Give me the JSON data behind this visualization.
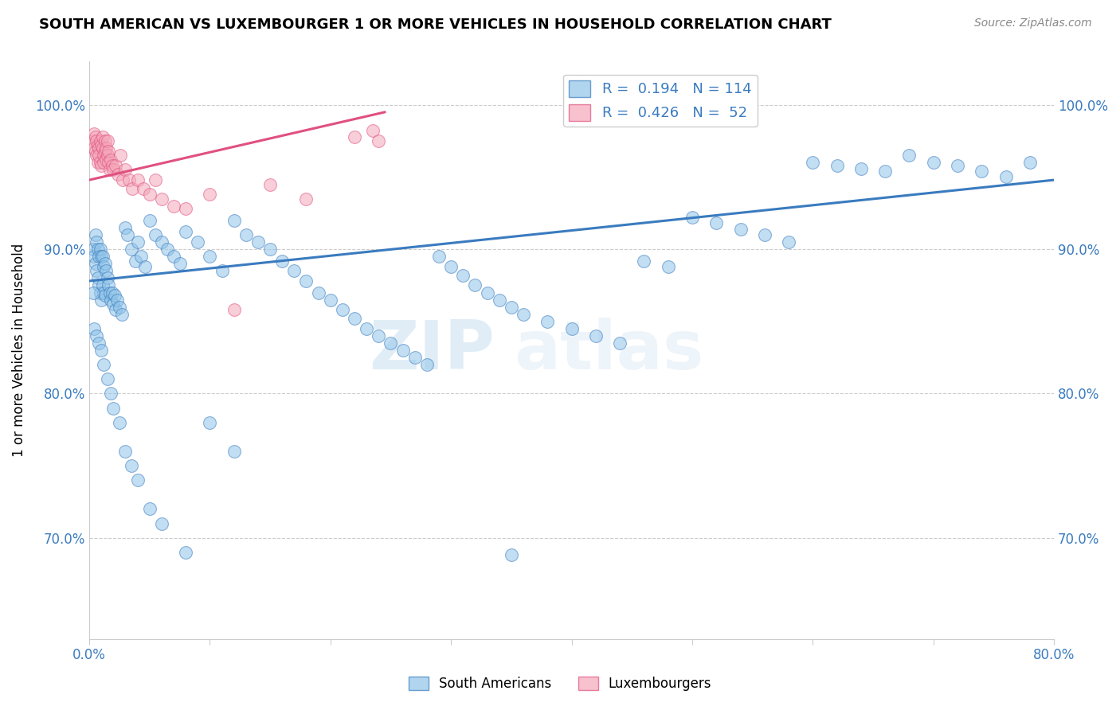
{
  "title": "SOUTH AMERICAN VS LUXEMBOURGER 1 OR MORE VEHICLES IN HOUSEHOLD CORRELATION CHART",
  "source": "Source: ZipAtlas.com",
  "ylabel": "1 or more Vehicles in Household",
  "legend_label1": "South Americans",
  "legend_label2": "Luxembourgers",
  "r1": 0.194,
  "n1": 114,
  "r2": 0.426,
  "n2": 52,
  "xlim": [
    0.0,
    0.8
  ],
  "ylim": [
    0.63,
    1.03
  ],
  "xticks": [
    0.0,
    0.1,
    0.2,
    0.3,
    0.4,
    0.5,
    0.6,
    0.7,
    0.8
  ],
  "xticklabels": [
    "0.0%",
    "",
    "",
    "",
    "",
    "",
    "",
    "",
    "80.0%"
  ],
  "yticks": [
    0.7,
    0.8,
    0.9,
    1.0
  ],
  "yticklabels": [
    "70.0%",
    "80.0%",
    "90.0%",
    "100.0%"
  ],
  "color_blue": "#90c4e8",
  "color_pink": "#f4a7b9",
  "line_color_blue": "#3a7bbf",
  "line_color_pink": "#e05080",
  "watermark_zip": "ZIP",
  "watermark_atlas": "atlas",
  "blue_scatter_x": [
    0.003,
    0.004,
    0.005,
    0.005,
    0.006,
    0.006,
    0.007,
    0.007,
    0.008,
    0.008,
    0.009,
    0.009,
    0.01,
    0.01,
    0.011,
    0.011,
    0.012,
    0.012,
    0.013,
    0.013,
    0.014,
    0.015,
    0.016,
    0.017,
    0.018,
    0.019,
    0.02,
    0.021,
    0.022,
    0.023,
    0.025,
    0.027,
    0.03,
    0.032,
    0.035,
    0.038,
    0.04,
    0.043,
    0.046,
    0.05,
    0.055,
    0.06,
    0.065,
    0.07,
    0.075,
    0.08,
    0.09,
    0.1,
    0.11,
    0.12,
    0.13,
    0.14,
    0.15,
    0.16,
    0.17,
    0.18,
    0.19,
    0.2,
    0.21,
    0.22,
    0.23,
    0.24,
    0.25,
    0.26,
    0.27,
    0.28,
    0.29,
    0.3,
    0.31,
    0.32,
    0.33,
    0.34,
    0.35,
    0.36,
    0.38,
    0.4,
    0.42,
    0.44,
    0.46,
    0.48,
    0.5,
    0.52,
    0.54,
    0.56,
    0.58,
    0.6,
    0.62,
    0.64,
    0.66,
    0.68,
    0.7,
    0.72,
    0.74,
    0.76,
    0.78,
    0.003,
    0.004,
    0.006,
    0.008,
    0.01,
    0.012,
    0.015,
    0.018,
    0.02,
    0.025,
    0.03,
    0.035,
    0.04,
    0.05,
    0.06,
    0.08,
    0.1,
    0.12,
    0.35
  ],
  "blue_scatter_y": [
    0.9,
    0.895,
    0.91,
    0.89,
    0.905,
    0.885,
    0.9,
    0.88,
    0.895,
    0.875,
    0.9,
    0.87,
    0.895,
    0.865,
    0.895,
    0.875,
    0.888,
    0.87,
    0.89,
    0.868,
    0.885,
    0.88,
    0.875,
    0.87,
    0.865,
    0.87,
    0.862,
    0.868,
    0.858,
    0.865,
    0.86,
    0.855,
    0.915,
    0.91,
    0.9,
    0.892,
    0.905,
    0.895,
    0.888,
    0.92,
    0.91,
    0.905,
    0.9,
    0.895,
    0.89,
    0.912,
    0.905,
    0.895,
    0.885,
    0.92,
    0.91,
    0.905,
    0.9,
    0.892,
    0.885,
    0.878,
    0.87,
    0.865,
    0.858,
    0.852,
    0.845,
    0.84,
    0.835,
    0.83,
    0.825,
    0.82,
    0.895,
    0.888,
    0.882,
    0.875,
    0.87,
    0.865,
    0.86,
    0.855,
    0.85,
    0.845,
    0.84,
    0.835,
    0.892,
    0.888,
    0.922,
    0.918,
    0.914,
    0.91,
    0.905,
    0.96,
    0.958,
    0.956,
    0.954,
    0.965,
    0.96,
    0.958,
    0.954,
    0.95,
    0.96,
    0.87,
    0.845,
    0.84,
    0.835,
    0.83,
    0.82,
    0.81,
    0.8,
    0.79,
    0.78,
    0.76,
    0.75,
    0.74,
    0.72,
    0.71,
    0.69,
    0.78,
    0.76,
    0.688
  ],
  "pink_scatter_x": [
    0.003,
    0.004,
    0.004,
    0.005,
    0.005,
    0.006,
    0.006,
    0.007,
    0.007,
    0.008,
    0.008,
    0.009,
    0.009,
    0.01,
    0.01,
    0.011,
    0.011,
    0.012,
    0.012,
    0.013,
    0.013,
    0.014,
    0.014,
    0.015,
    0.015,
    0.016,
    0.016,
    0.017,
    0.018,
    0.019,
    0.02,
    0.022,
    0.024,
    0.026,
    0.028,
    0.03,
    0.033,
    0.036,
    0.04,
    0.045,
    0.05,
    0.055,
    0.06,
    0.07,
    0.08,
    0.1,
    0.12,
    0.15,
    0.18,
    0.22,
    0.235,
    0.24
  ],
  "pink_scatter_y": [
    0.975,
    0.98,
    0.97,
    0.978,
    0.968,
    0.975,
    0.965,
    0.972,
    0.96,
    0.97,
    0.965,
    0.975,
    0.96,
    0.972,
    0.958,
    0.97,
    0.978,
    0.965,
    0.96,
    0.968,
    0.975,
    0.962,
    0.97,
    0.965,
    0.975,
    0.96,
    0.968,
    0.955,
    0.962,
    0.958,
    0.955,
    0.958,
    0.952,
    0.965,
    0.948,
    0.955,
    0.948,
    0.942,
    0.948,
    0.942,
    0.938,
    0.948,
    0.935,
    0.93,
    0.928,
    0.938,
    0.858,
    0.945,
    0.935,
    0.978,
    0.982,
    0.975
  ],
  "blue_trendline_x": [
    0.0,
    0.8
  ],
  "blue_trendline_y": [
    0.878,
    0.948
  ],
  "pink_trendline_x": [
    0.0,
    0.245
  ],
  "pink_trendline_y": [
    0.948,
    0.995
  ]
}
